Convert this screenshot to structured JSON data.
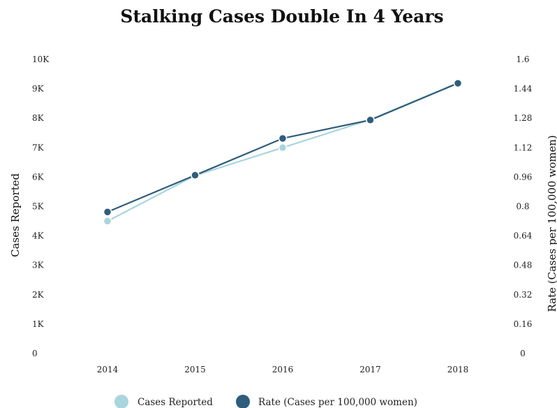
{
  "chart_data": {
    "type": "line",
    "title": "Stalking Cases Double In 4 Years",
    "xlabel": "",
    "categories": [
      "2014",
      "2015",
      "2016",
      "2017",
      "2018"
    ],
    "y_left": {
      "label": "Cases Reported",
      "range": [
        0,
        10000
      ],
      "ticks": [
        "0",
        "1K",
        "2K",
        "3K",
        "4K",
        "5K",
        "6K",
        "7K",
        "8K",
        "9K",
        "10K"
      ]
    },
    "y_right": {
      "label": "Rate (Cases per 100,000 women)",
      "range": [
        0,
        1.6
      ],
      "ticks": [
        "0",
        "0.16",
        "0.32",
        "0.48",
        "0.64",
        "0.8",
        "0.96",
        "1.12",
        "1.28",
        "1.44",
        "1.6"
      ]
    },
    "series": [
      {
        "name": "Cases Reported",
        "axis": "left",
        "color": "#a8d5de",
        "values": [
          4500,
          6050,
          7000,
          7950,
          9200
        ]
      },
      {
        "name": "Rate (Cases per 100,000 women)",
        "axis": "right",
        "color": "#2f5d7c",
        "values": [
          0.77,
          0.97,
          1.17,
          1.27,
          1.47
        ]
      }
    ],
    "grid": false,
    "legend_position": "bottom"
  }
}
